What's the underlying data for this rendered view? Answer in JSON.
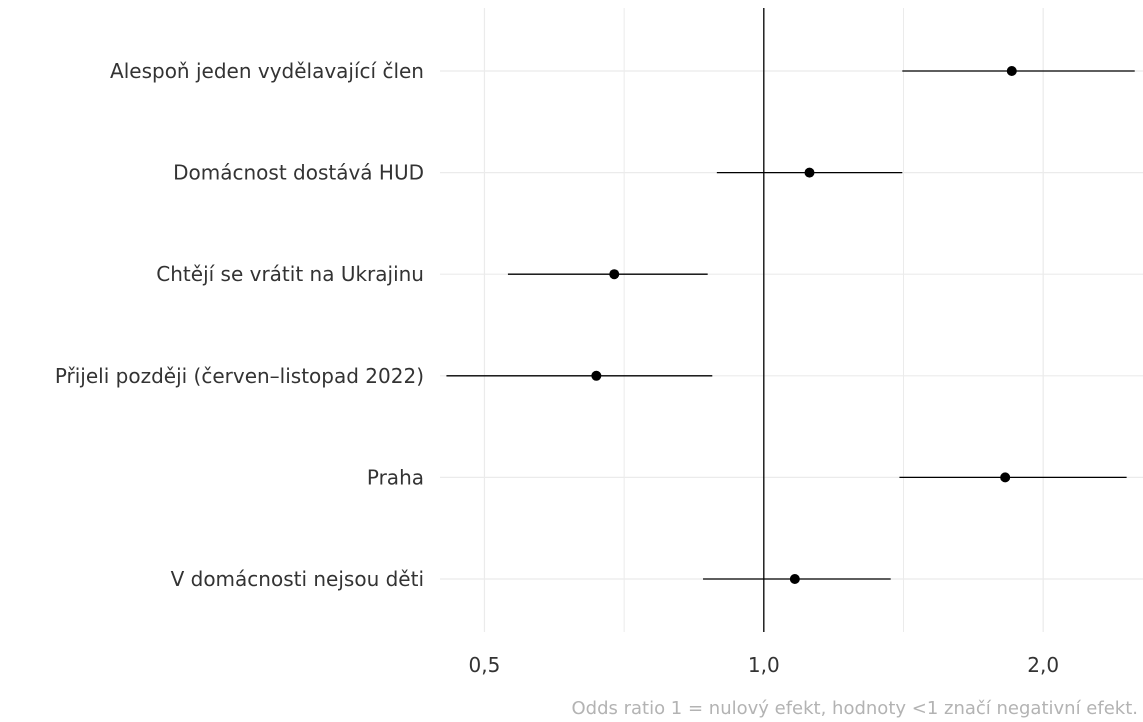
{
  "chart_data": {
    "type": "scatter",
    "subtype": "forest-plot",
    "x_scale": "log",
    "xlim": [
      0.4478,
      2.562
    ],
    "x_ticks": [
      0.5,
      1.0,
      2.0
    ],
    "x_tick_labels": [
      "0,5",
      "1,0",
      "2,0"
    ],
    "reference_line": 1.0,
    "grid": true,
    "categories": [
      "Alespoň jeden vydělavající člen",
      "Domácnost dostává HUD",
      "Chtějí se vrátit na Ukrajinu",
      "Přijeli později (červen–listopad 2022)",
      "Praha",
      "V domácnosti nejsou děti"
    ],
    "estimates": [
      1.85,
      1.12,
      0.69,
      0.66,
      1.82,
      1.08
    ],
    "ci_low": [
      1.41,
      0.89,
      0.53,
      0.455,
      1.4,
      0.86
    ],
    "ci_high": [
      2.51,
      1.41,
      0.87,
      0.88,
      2.46,
      1.37
    ],
    "caption": "Odds ratio 1 = nulový efekt, hodnoty <1 značí negativní efekt.",
    "colors": {
      "point": "#000000",
      "grid": "#ebebeb",
      "text": "#333333",
      "caption": "#b3b3b3"
    }
  }
}
